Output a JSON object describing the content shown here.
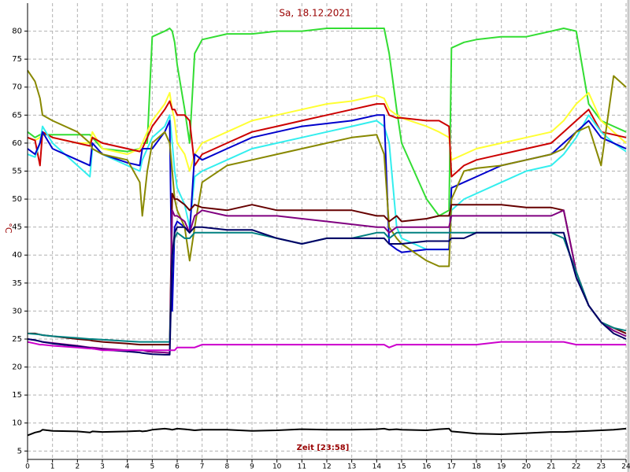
{
  "chart_data": {
    "type": "line",
    "title": "Sa, 18.12.2021",
    "x_label": "Zeit [23:58]",
    "y_label": "°C",
    "grid": true,
    "xlim": [
      0,
      24
    ],
    "xticks": [
      0,
      1,
      2,
      3,
      4,
      5,
      6,
      7,
      8,
      9,
      10,
      11,
      12,
      13,
      14,
      15,
      16,
      17,
      18,
      19,
      20,
      21,
      22,
      23,
      24
    ],
    "ylim": [
      3.5,
      85
    ],
    "yticks": [
      5,
      10,
      15,
      20,
      25,
      30,
      35,
      40,
      45,
      50,
      55,
      60,
      65,
      70,
      75,
      80
    ],
    "x": [
      0,
      0.3,
      0.5,
      0.6,
      1,
      2,
      2.5,
      2.6,
      3,
      4,
      4.5,
      4.6,
      4.8,
      5,
      5.5,
      5.7,
      5.8,
      5.9,
      6,
      6.3,
      6.5,
      6.7,
      7,
      8,
      9,
      10,
      11,
      12,
      13,
      14,
      14.3,
      14.5,
      14.8,
      15,
      16,
      16.5,
      16.9,
      17,
      17.5,
      18,
      19,
      20,
      21,
      21.5,
      22,
      22.5,
      23,
      23.5,
      24
    ],
    "series": [
      {
        "color": "#33dd33",
        "values": [
          62,
          61,
          61.5,
          61.5,
          61.5,
          61.5,
          61.5,
          61,
          59,
          58.5,
          59,
          60,
          60,
          79,
          80,
          80.5,
          80,
          78,
          74,
          66,
          60,
          76,
          78.5,
          79.5,
          79.5,
          80,
          80,
          80.5,
          80.5,
          80.5,
          80.5,
          76,
          66,
          60,
          50,
          47,
          48,
          77,
          78,
          78.5,
          79,
          79,
          80,
          80.5,
          80,
          67,
          64,
          63,
          62
        ]
      },
      {
        "color": "#ffff33",
        "values": [
          61,
          60.5,
          61,
          62,
          61,
          60,
          60,
          62,
          59,
          58,
          59,
          60,
          62,
          64,
          67,
          69,
          66,
          64,
          60,
          58,
          55,
          58,
          60,
          62,
          64,
          65,
          66,
          67,
          67.5,
          68.5,
          68,
          66,
          65,
          64.5,
          63,
          62,
          61,
          57,
          58,
          59,
          60,
          61,
          62,
          64,
          67,
          69,
          64,
          62,
          60
        ]
      },
      {
        "color": "#cc0000",
        "values": [
          61,
          60.5,
          56,
          62,
          61,
          60,
          59.5,
          61,
          60,
          59,
          58.5,
          59,
          61,
          63,
          66,
          67.5,
          66,
          66,
          65,
          65,
          64,
          56,
          58,
          60,
          62,
          63,
          64,
          65,
          66,
          67,
          67,
          65,
          64.5,
          64.5,
          64,
          64,
          63,
          54,
          56,
          57,
          58,
          59,
          60,
          62,
          64,
          66,
          62,
          61.5,
          61
        ]
      },
      {
        "color": "#33eeee",
        "values": [
          58,
          57.5,
          60,
          63,
          60,
          56,
          54,
          59,
          58,
          56,
          55,
          57,
          59,
          61,
          63,
          65,
          60,
          55,
          52,
          49,
          45,
          54,
          55,
          57,
          59,
          60,
          61,
          62,
          63,
          64,
          63,
          60,
          45,
          43,
          41,
          41,
          41,
          48,
          50,
          51,
          53,
          55,
          56,
          58,
          61,
          65,
          62,
          60,
          58.5
        ]
      },
      {
        "color": "#0000cc",
        "values": [
          59,
          58,
          60,
          62,
          59,
          57,
          56,
          60,
          58,
          56.5,
          56,
          59,
          59,
          59,
          62,
          64,
          30,
          45,
          46,
          45,
          44,
          58,
          57,
          59,
          61,
          62,
          63,
          63.5,
          64,
          65,
          65,
          42,
          41,
          40.5,
          41,
          41,
          41,
          52,
          53,
          54,
          56,
          57,
          58,
          60,
          62,
          64,
          61,
          60,
          59
        ]
      },
      {
        "color": "#888800",
        "values": [
          73,
          71,
          68,
          65,
          64,
          62,
          60,
          59,
          58,
          57,
          53,
          47,
          55,
          60,
          62,
          60,
          55,
          50,
          48,
          45,
          39,
          45,
          53,
          56,
          57,
          58,
          59,
          60,
          61,
          61.5,
          58,
          45,
          43,
          42,
          39,
          38,
          38,
          50,
          55,
          55.5,
          56,
          57,
          58,
          59,
          62,
          63,
          56,
          72,
          70
        ]
      },
      {
        "color": "#660000",
        "values": [
          26,
          26,
          25.8,
          25.7,
          25.5,
          25,
          24.8,
          24.7,
          24.5,
          24.2,
          24,
          24,
          24,
          24,
          24,
          24,
          51,
          50,
          50,
          49,
          48,
          49,
          48.5,
          48,
          49,
          48,
          48,
          48,
          48,
          47,
          47,
          46,
          47,
          46,
          46.5,
          47,
          47,
          49,
          49,
          49,
          49,
          48.5,
          48.5,
          48,
          37,
          31,
          28,
          27,
          26
        ]
      },
      {
        "color": "#800080",
        "values": [
          25,
          24.8,
          24.6,
          24.5,
          24.3,
          23.8,
          23.5,
          23.5,
          23.3,
          23,
          23,
          23,
          22.8,
          22.7,
          22.6,
          22.5,
          48,
          47,
          47,
          46,
          44,
          47,
          48,
          47,
          47,
          47,
          46.5,
          46,
          45.5,
          45,
          45,
          44,
          45,
          45,
          45,
          45,
          45,
          47,
          47,
          47,
          47,
          47,
          47,
          48,
          37,
          31,
          28,
          26.5,
          25.5
        ]
      },
      {
        "color": "#008080",
        "values": [
          26,
          25.9,
          25.8,
          25.7,
          25.5,
          25.2,
          25,
          25,
          24.9,
          24.6,
          24.5,
          24.5,
          24.5,
          24.5,
          24.5,
          24.5,
          40,
          43,
          44,
          43,
          43,
          44,
          44,
          44,
          44,
          43,
          42,
          43,
          43,
          44,
          44,
          43,
          44,
          44,
          44,
          44,
          44,
          44,
          44,
          44,
          44,
          44,
          44,
          43,
          37,
          31,
          28,
          27,
          26.5
        ]
      },
      {
        "color": "#000066",
        "values": [
          25,
          24.8,
          24.6,
          24.5,
          24.2,
          23.7,
          23.4,
          23.3,
          23.1,
          22.8,
          22.6,
          22.5,
          22.4,
          22.3,
          22.2,
          22.2,
          40,
          44,
          45,
          45,
          44,
          45,
          45,
          44.5,
          44.5,
          43,
          42,
          43,
          43,
          43,
          43,
          42,
          42,
          42,
          42.5,
          42.5,
          42.5,
          43,
          43,
          44,
          44,
          44,
          44,
          44,
          36,
          31,
          28,
          26,
          25
        ]
      },
      {
        "color": "#cc00cc",
        "values": [
          24.5,
          24.2,
          24,
          24,
          23.8,
          23.5,
          23.3,
          23.3,
          23,
          23,
          23,
          23,
          23,
          23,
          23,
          23,
          23,
          23,
          23.5,
          23.5,
          23.5,
          23.5,
          24,
          24,
          24,
          24,
          24,
          24,
          24,
          24,
          24,
          23.5,
          24,
          24,
          24,
          24,
          24,
          24,
          24,
          24,
          24.5,
          24.5,
          24.5,
          24.5,
          24,
          24,
          24,
          24,
          24
        ]
      },
      {
        "color": "#000000",
        "values": [
          7.8,
          8.3,
          8.5,
          8.8,
          8.6,
          8.5,
          8.3,
          8.5,
          8.4,
          8.5,
          8.6,
          8.5,
          8.6,
          8.8,
          9,
          8.9,
          8.8,
          8.9,
          9,
          8.9,
          8.8,
          8.7,
          8.8,
          8.8,
          8.6,
          8.7,
          8.9,
          8.8,
          8.8,
          8.9,
          9,
          8.8,
          8.9,
          8.8,
          8.7,
          8.9,
          9,
          8.5,
          8.3,
          8.1,
          8,
          8.2,
          8.4,
          8.4,
          8.5,
          8.6,
          8.7,
          8.8,
          9
        ]
      }
    ]
  }
}
